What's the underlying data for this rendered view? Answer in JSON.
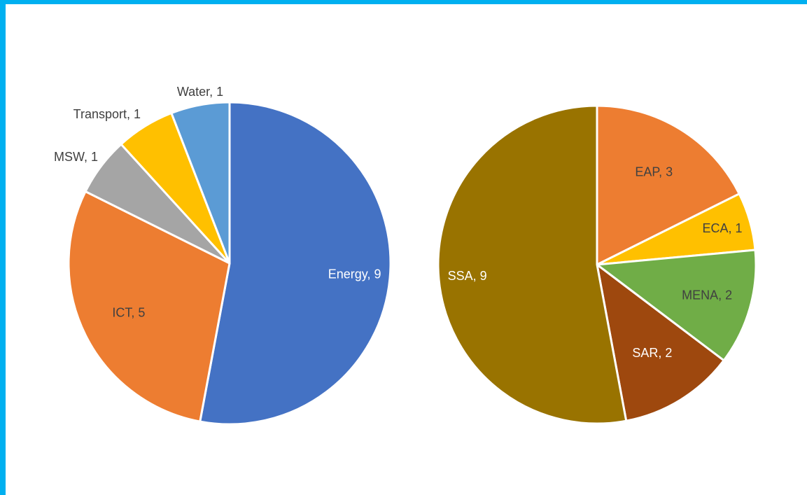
{
  "chart_data": [
    {
      "type": "pie",
      "title": "",
      "slices": [
        {
          "label": "Energy",
          "value": 9,
          "color": "#4472c4",
          "label_color": "#ffffff"
        },
        {
          "label": "ICT",
          "value": 5,
          "color": "#ed7d31",
          "label_color": "#404040"
        },
        {
          "label": "MSW",
          "value": 1,
          "color": "#a5a5a5",
          "label_color": "#404040"
        },
        {
          "label": "Transport",
          "value": 1,
          "color": "#ffc000",
          "label_color": "#404040"
        },
        {
          "label": "Water",
          "value": 1,
          "color": "#5b9bd5",
          "label_color": "#404040"
        }
      ]
    },
    {
      "type": "pie",
      "title": "",
      "slices": [
        {
          "label": "EAP",
          "value": 3,
          "color": "#ed7d31",
          "label_color": "#404040"
        },
        {
          "label": "ECA",
          "value": 1,
          "color": "#ffc000",
          "label_color": "#404040"
        },
        {
          "label": "MENA",
          "value": 2,
          "color": "#70ad47",
          "label_color": "#404040"
        },
        {
          "label": "SAR",
          "value": 2,
          "color": "#9e480e",
          "label_color": "#ffffff"
        },
        {
          "label": "SSA",
          "value": 9,
          "color": "#997300",
          "label_color": "#ffffff"
        }
      ]
    }
  ]
}
